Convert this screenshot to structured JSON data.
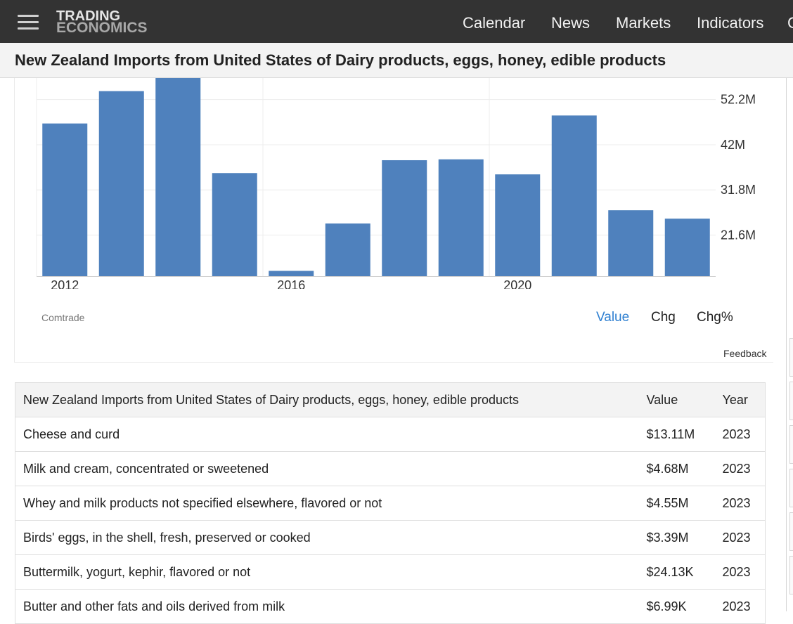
{
  "header": {
    "logo_line1": "TRADING",
    "logo_line2": "ECONOMICS",
    "nav": [
      "Calendar",
      "News",
      "Markets",
      "Indicators",
      "C"
    ]
  },
  "page_title": "New Zealand Imports from United States of Dairy products, eggs, honey, edible products",
  "chart_data": {
    "type": "bar",
    "categories": [
      "2012",
      "2013",
      "2014",
      "2015",
      "2016",
      "2017",
      "2018",
      "2019",
      "2020",
      "2021",
      "2022",
      "2023"
    ],
    "values": [
      46.8,
      54.1,
      58.0,
      35.6,
      13.5,
      24.2,
      38.5,
      38.7,
      35.3,
      48.6,
      27.2,
      25.3
    ],
    "x_tick_labels": [
      "2012",
      "2016",
      "2020"
    ],
    "y_tick_labels": [
      "52.2M",
      "42M",
      "31.8M",
      "21.6M"
    ],
    "y_ticks": [
      52.2,
      42,
      31.8,
      21.6
    ],
    "unit": "M",
    "bar_color": "#4f81bd",
    "grid": true
  },
  "chart_footer": {
    "source": "Comtrade",
    "toggles": [
      "Value",
      "Chg",
      "Chg%"
    ],
    "active_toggle": "Value",
    "feedback": "Feedback"
  },
  "table": {
    "headers": [
      "New Zealand Imports from United States of Dairy products, eggs, honey, edible products",
      "Value",
      "Year"
    ],
    "rows": [
      {
        "name": "Cheese and curd",
        "value": "$13.11M",
        "year": "2023"
      },
      {
        "name": "Milk and cream, concentrated or sweetened",
        "value": "$4.68M",
        "year": "2023"
      },
      {
        "name": "Whey and milk products not specified elsewhere, flavored or not",
        "value": "$4.55M",
        "year": "2023"
      },
      {
        "name": "Birds' eggs, in the shell, fresh, preserved or cooked",
        "value": "$3.39M",
        "year": "2023"
      },
      {
        "name": "Buttermilk, yogurt, kephir, flavored or not",
        "value": "$24.13K",
        "year": "2023"
      },
      {
        "name": "Butter and other fats and oils derived from milk",
        "value": "$6.99K",
        "year": "2023"
      }
    ]
  },
  "colors": {
    "header_bg": "#333333",
    "accent": "#2f80d1"
  }
}
